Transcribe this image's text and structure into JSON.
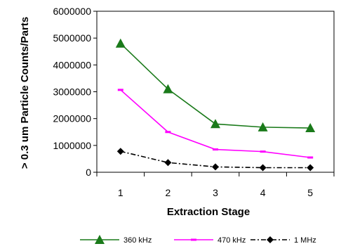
{
  "chart_data": {
    "type": "line",
    "title": "",
    "xlabel": "Extraction Stage",
    "ylabel": "> 0.3 um Particle Counts/Parts",
    "x": [
      1,
      2,
      3,
      4,
      5
    ],
    "xticks": [
      "1",
      "2",
      "3",
      "4",
      "5"
    ],
    "ylim": [
      0,
      6000000
    ],
    "yticks": [
      "0",
      "1000000",
      "2000000",
      "3000000",
      "4000000",
      "5000000",
      "6000000"
    ],
    "grid": false,
    "legend_position": "bottom",
    "series": [
      {
        "name": "360 kHz",
        "values": [
          4800000,
          3100000,
          1800000,
          1680000,
          1650000
        ],
        "color": "#1a7a1a",
        "marker": "triangle",
        "dash": "solid"
      },
      {
        "name": "470 kHz",
        "values": [
          3070000,
          1500000,
          850000,
          770000,
          550000
        ],
        "color": "#ff00ff",
        "marker": "dash",
        "dash": "solid"
      },
      {
        "name": "1 MHz",
        "values": [
          780000,
          360000,
          200000,
          170000,
          170000
        ],
        "color": "#000000",
        "marker": "diamond",
        "dash": "dashdot"
      }
    ]
  }
}
